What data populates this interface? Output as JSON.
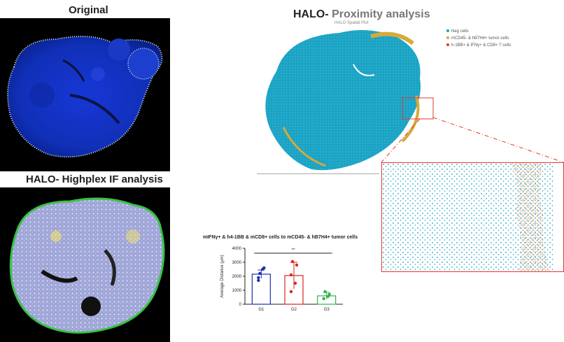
{
  "panels": {
    "original_title": "Original",
    "highplex_title": "HALO- Highplex IF analysis",
    "proximity_title_prefix": "HALO-",
    "proximity_title_rest": " Proximity analysis"
  },
  "proximity_map": {
    "header_text": "HALO Spatial Plot",
    "legend": [
      {
        "label": "Neg cells",
        "color": "#1aa3c4"
      },
      {
        "label": "mCD45- & hB7H4+ tumor cells",
        "color": "#d8a93a"
      },
      {
        "label": "h-1BB+ & IFNγ+ & CD8+ T cells",
        "color": "#e03a2b"
      }
    ]
  },
  "chart_data": {
    "type": "bar",
    "title": "mIFNγ+ & h4-1BB & mCD8+ cells to mCD45- & hB7H4+ tumor cells",
    "ylabel": "Average Distance (µm)",
    "xlabel": "",
    "categories": [
      "G1",
      "G2",
      "G3"
    ],
    "values": [
      2150,
      2050,
      600
    ],
    "errors": [
      300,
      950,
      250
    ],
    "points": [
      [
        2200,
        2600,
        1900,
        2500,
        1700
      ],
      [
        3050,
        2800,
        2100,
        1500,
        900
      ],
      [
        900,
        700,
        400,
        550
      ]
    ],
    "colors": [
      "#1b2fb0",
      "#d8261e",
      "#2cb34a"
    ],
    "ylim": [
      0,
      4000
    ],
    "yticks": [
      "0",
      "1000",
      "2000",
      "3000",
      "4000"
    ],
    "significance": "**"
  }
}
